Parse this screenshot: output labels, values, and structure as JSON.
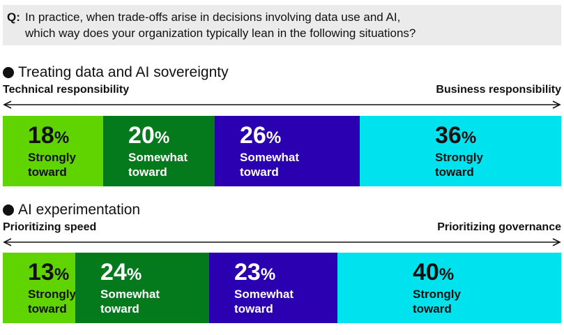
{
  "question": {
    "label": "Q:",
    "line1": "In practice, when trade-offs arise in decisions involving data use and AI,",
    "line2": "which way does your organization typically lean in the following situations?"
  },
  "percent_symbol": "%",
  "colors": {
    "strong_left": "#5fd400",
    "somewhat_left": "#047a1c",
    "somewhat_right": "#2a00b0",
    "strong_right": "#00e3ef",
    "text_dark": "#111111",
    "text_light": "#ffffff"
  },
  "chart_data": [
    {
      "type": "bar",
      "title": "Treating data and AI sovereignty",
      "left_label": "Technical responsibility",
      "right_label": "Business responsibility",
      "unit": "%",
      "segments": [
        {
          "value": 18,
          "label_line1": "Strongly",
          "label_line2": "toward"
        },
        {
          "value": 20,
          "label_line1": "Somewhat",
          "label_line2": "toward"
        },
        {
          "value": 26,
          "label_line1": "Somewhat",
          "label_line2": "toward"
        },
        {
          "value": 36,
          "label_line1": "Strongly",
          "label_line2": "toward"
        }
      ]
    },
    {
      "type": "bar",
      "title": "AI experimentation",
      "left_label": "Prioritizing speed",
      "right_label": "Prioritizing governance",
      "unit": "%",
      "segments": [
        {
          "value": 13,
          "label_line1": "Strongly",
          "label_line2": "toward"
        },
        {
          "value": 24,
          "label_line1": "Somewhat",
          "label_line2": "toward"
        },
        {
          "value": 23,
          "label_line1": "Somewhat",
          "label_line2": "toward"
        },
        {
          "value": 40,
          "label_line1": "Strongly",
          "label_line2": "toward"
        }
      ]
    }
  ]
}
